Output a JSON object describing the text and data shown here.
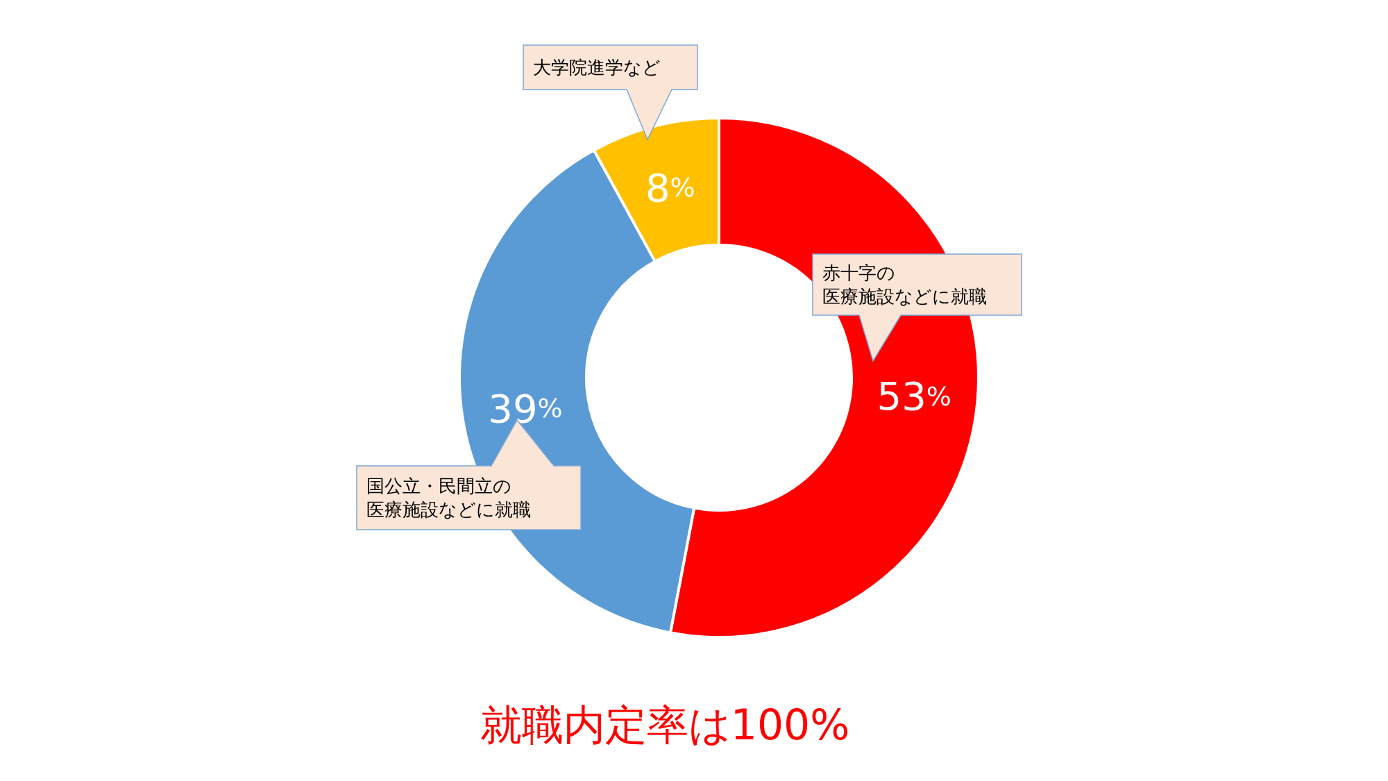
{
  "chart_data": {
    "type": "donut",
    "title": "就職内定率は100%",
    "categories": [
      "赤十字の医療施設などに就職",
      "国公立・民間立の医療施設などに就職",
      "大学院進学など"
    ],
    "values": [
      53,
      39,
      8
    ],
    "colors": [
      "#ff0000",
      "#5b9bd5",
      "#ffc000"
    ],
    "value_labels": [
      "53%",
      "39%",
      "8%"
    ]
  }
}
